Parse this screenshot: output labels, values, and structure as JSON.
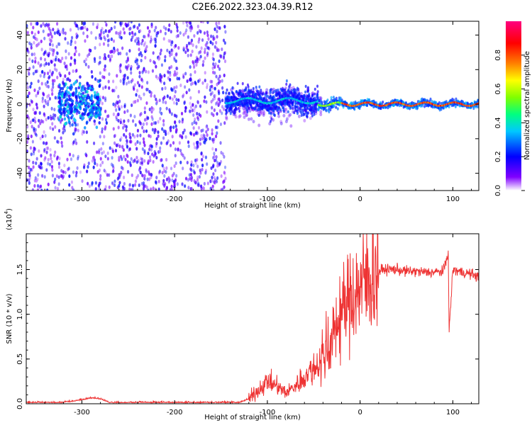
{
  "title": "C2E6.2022.323.04.39.R12",
  "chart_data": [
    {
      "type": "heatmap",
      "xlabel": "Height of straight line (km)",
      "ylabel": "Frequency (Hz)",
      "xlim": [
        -360,
        128
      ],
      "ylim": [
        -50,
        48
      ],
      "xticks": [
        -300,
        -200,
        -100,
        0,
        100
      ],
      "yticks": [
        -40,
        -20,
        0,
        20,
        40
      ],
      "xtick_labels": [
        "-300",
        "-200",
        "-100",
        "0",
        "100"
      ],
      "ytick_labels": [
        "-40",
        "-20",
        "0",
        "20",
        "40"
      ],
      "colorbar": {
        "label": "Normalized spectral amplitude",
        "ticks": [
          0.0,
          0.2,
          0.4,
          0.6,
          0.8
        ],
        "tick_labels": [
          "0.0",
          "0.2",
          "0.4",
          "0.6",
          "0.8"
        ],
        "colormap": [
          "#ffffff",
          "#8000ff",
          "#0000ff",
          "#00c8ff",
          "#00ff80",
          "#80ff00",
          "#ffff00",
          "#ff8000",
          "#ff0000",
          "#ff0080"
        ]
      },
      "regions": [
        {
          "name": "broadband noise",
          "x_range": [
            -360,
            -145
          ],
          "freq_range": [
            -50,
            48
          ],
          "amplitude": 0.1
        },
        {
          "name": "noise burst",
          "x_range": [
            -325,
            -280
          ],
          "freq_range": [
            -15,
            15
          ],
          "amplitude": 0.3
        },
        {
          "name": "signal",
          "x_range": [
            -145,
            128
          ],
          "center_freq": 0,
          "amplitude_range": [
            0.3,
            0.9
          ]
        }
      ]
    },
    {
      "type": "line",
      "xlabel": "Height of straight line (km)",
      "ylabel": "SNR (10 * v/v)",
      "scale_label": "(x10",
      "scale_exponent": "4",
      "xlim": [
        -360,
        128
      ],
      "ylim": [
        0,
        1.9
      ],
      "xticks": [
        -300,
        -200,
        -100,
        0,
        100
      ],
      "yticks": [
        0.0,
        0.5,
        1.0,
        1.5
      ],
      "xtick_labels": [
        "-300",
        "-200",
        "-100",
        "0",
        "100"
      ],
      "ytick_labels": [
        "0.0",
        "0.5",
        "1.0",
        "1.5"
      ],
      "color": "#ee3333",
      "series": [
        {
          "x": [
            -360,
            -320,
            -300,
            -290,
            -280,
            -270,
            -250,
            -200,
            -150,
            -130,
            -120,
            -110,
            -100,
            -90,
            -80,
            -70,
            -60,
            -50,
            -40,
            -30,
            -25,
            -20,
            -15,
            -10,
            -5,
            0,
            5,
            10,
            15,
            20,
            25,
            30,
            40,
            50,
            60,
            70,
            80,
            90,
            95,
            96,
            100,
            110,
            120,
            128
          ],
          "y": [
            0.01,
            0.01,
            0.04,
            0.06,
            0.05,
            0.01,
            0.01,
            0.01,
            0.01,
            0.01,
            0.05,
            0.15,
            0.25,
            0.2,
            0.12,
            0.2,
            0.3,
            0.4,
            0.5,
            0.7,
            0.9,
            1.0,
            1.1,
            1.2,
            1.25,
            1.3,
            1.35,
            1.4,
            1.45,
            1.48,
            1.5,
            1.5,
            1.5,
            1.48,
            1.48,
            1.47,
            1.47,
            1.48,
            1.7,
            0.8,
            1.5,
            1.47,
            1.45,
            1.42
          ]
        }
      ]
    }
  ]
}
